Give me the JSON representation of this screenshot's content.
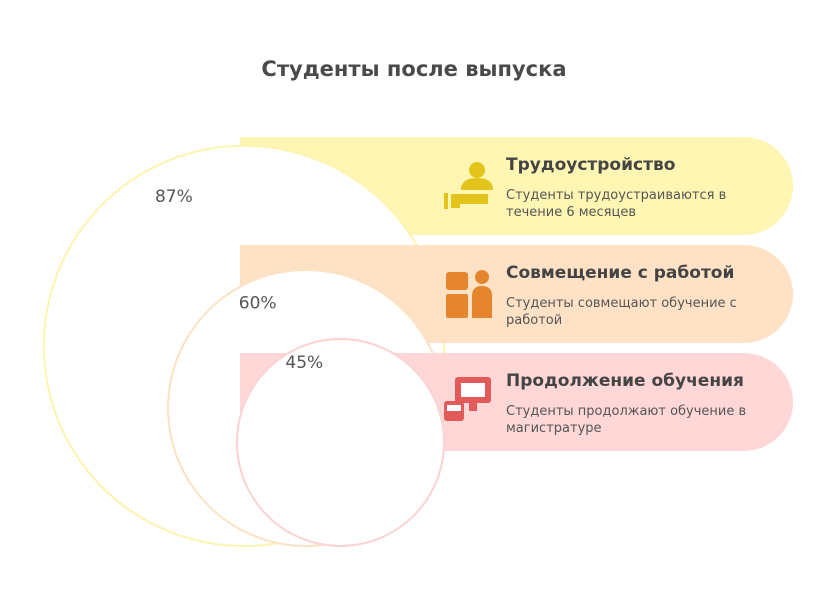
{
  "title": "Студенты после выпуска",
  "items": [
    {
      "value": 87,
      "value_label": "87%",
      "title": "Трудоустройство",
      "description": "Студенты трудоустраиваются в течение 6 месяцев",
      "band_color": "#fff6b3",
      "stroke_color": "#fff3b0",
      "icon_color": "#e3c41a"
    },
    {
      "value": 60,
      "value_label": "60%",
      "title": "Совмещение с работой",
      "description": "Студенты совмещают обучение с работой",
      "band_color": "#ffe2c6",
      "stroke_color": "#fde2c4",
      "icon_color": "#e5852e"
    },
    {
      "value": 45,
      "value_label": "45%",
      "title": "Продолжение обучения",
      "description": "Студенты продолжают обучение в магистратуре",
      "band_color": "#ffd7d6",
      "stroke_color": "#fbd3d2",
      "icon_color": "#e35a5a"
    }
  ]
}
